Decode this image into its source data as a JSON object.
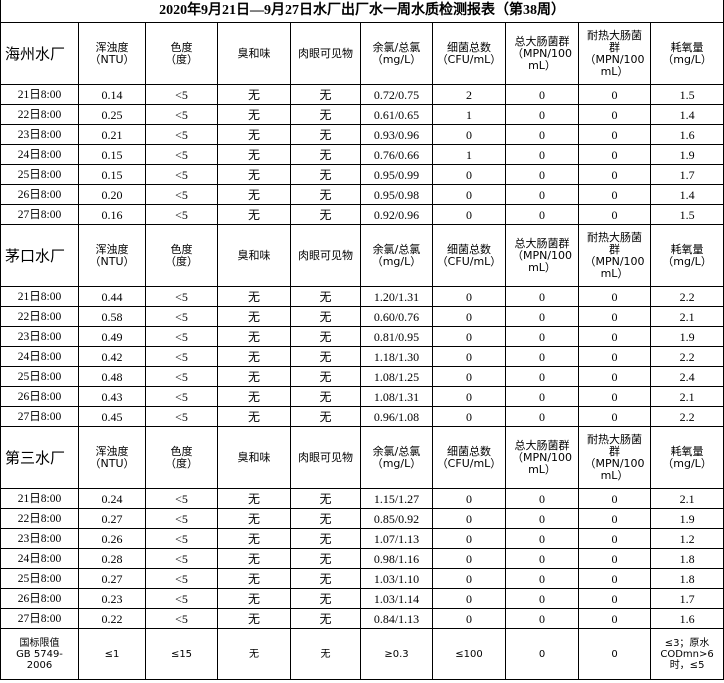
{
  "title": "2020年9月21日—9月27日水厂出厂水一周水质检测报表（第38周）",
  "sections": [
    {
      "name": "海州水厂",
      "headers": [
        "浑浊度\n（NTU）",
        "色度\n（度）",
        "臭和味",
        "肉眼可见物",
        "余氯/总氯\n（mg/L）",
        "细菌总数\n（CFU/mL）",
        "总大肠菌群\n（MPN/100\nmL）",
        "耐热大肠菌\n群\n（MPN/100\nmL）",
        "耗氧量\n（mg/L）"
      ],
      "rows": [
        [
          "21日8:00",
          "0.14",
          "<5",
          "无",
          "无",
          "0.72/0.75",
          "2",
          "0",
          "0",
          "1.5"
        ],
        [
          "22日8:00",
          "0.25",
          "<5",
          "无",
          "无",
          "0.61/0.65",
          "1",
          "0",
          "0",
          "1.4"
        ],
        [
          "23日8:00",
          "0.21",
          "<5",
          "无",
          "无",
          "0.93/0.96",
          "0",
          "0",
          "0",
          "1.6"
        ],
        [
          "24日8:00",
          "0.15",
          "<5",
          "无",
          "无",
          "0.76/0.66",
          "1",
          "0",
          "0",
          "1.9"
        ],
        [
          "25日8:00",
          "0.15",
          "<5",
          "无",
          "无",
          "0.95/0.99",
          "0",
          "0",
          "0",
          "1.7"
        ],
        [
          "26日8:00",
          "0.20",
          "<5",
          "无",
          "无",
          "0.95/0.98",
          "0",
          "0",
          "0",
          "1.4"
        ],
        [
          "27日8:00",
          "0.16",
          "<5",
          "无",
          "无",
          "0.92/0.96",
          "0",
          "0",
          "0",
          "1.5"
        ]
      ]
    },
    {
      "name": "茅口水厂",
      "headers": [
        "浑浊度\n（NTU）",
        "色度\n（度）",
        "臭和味",
        "肉眼可见物",
        "余氯/总氯\n（mg/L）",
        "细菌总数\n（CFU/mL）",
        "总大肠菌群\n（MPN/100\nmL）",
        "耐热大肠菌\n群\n（MPN/100\nmL）",
        "耗氧量\n（mg/L）"
      ],
      "rows": [
        [
          "21日8:00",
          "0.44",
          "<5",
          "无",
          "无",
          "1.20/1.31",
          "0",
          "0",
          "0",
          "2.2"
        ],
        [
          "22日8:00",
          "0.58",
          "<5",
          "无",
          "无",
          "0.60/0.76",
          "0",
          "0",
          "0",
          "2.1"
        ],
        [
          "23日8:00",
          "0.49",
          "<5",
          "无",
          "无",
          "0.81/0.95",
          "0",
          "0",
          "0",
          "1.9"
        ],
        [
          "24日8:00",
          "0.42",
          "<5",
          "无",
          "无",
          "1.18/1.30",
          "0",
          "0",
          "0",
          "2.2"
        ],
        [
          "25日8:00",
          "0.48",
          "<5",
          "无",
          "无",
          "1.08/1.25",
          "0",
          "0",
          "0",
          "2.4"
        ],
        [
          "26日8:00",
          "0.43",
          "<5",
          "无",
          "无",
          "1.08/1.31",
          "0",
          "0",
          "0",
          "2.1"
        ],
        [
          "27日8:00",
          "0.45",
          "<5",
          "无",
          "无",
          "0.96/1.08",
          "0",
          "0",
          "0",
          "2.2"
        ]
      ]
    },
    {
      "name": "第三水厂",
      "headers": [
        "浑浊度\n（NTU）",
        "色度\n（度）",
        "臭和味",
        "肉眼可见物",
        "余氯/总氯\n（mg/L）",
        "细菌总数\n（CFU/mL）",
        "总大肠菌群\n（MPN/100\nmL）",
        "耐热大肠菌\n群\n（MPN/100\nmL）",
        "耗氧量\n（mg/L）"
      ],
      "rows": [
        [
          "21日8:00",
          "0.24",
          "<5",
          "无",
          "无",
          "1.15/1.27",
          "0",
          "0",
          "0",
          "2.1"
        ],
        [
          "22日8:00",
          "0.27",
          "<5",
          "无",
          "无",
          "0.85/0.92",
          "0",
          "0",
          "0",
          "1.9"
        ],
        [
          "23日8:00",
          "0.26",
          "<5",
          "无",
          "无",
          "1.07/1.13",
          "0",
          "0",
          "0",
          "1.2"
        ],
        [
          "24日8:00",
          "0.28",
          "<5",
          "无",
          "无",
          "0.98/1.16",
          "0",
          "0",
          "0",
          "1.8"
        ],
        [
          "25日8:00",
          "0.27",
          "<5",
          "无",
          "无",
          "1.03/1.10",
          "0",
          "0",
          "0",
          "1.8"
        ],
        [
          "26日8:00",
          "0.23",
          "<5",
          "无",
          "无",
          "1.03/1.14",
          "0",
          "0",
          "0",
          "1.7"
        ],
        [
          "27日8:00",
          "0.22",
          "<5",
          "无",
          "无",
          "0.84/1.13",
          "0",
          "0",
          "0",
          "1.6"
        ]
      ]
    }
  ],
  "footer": [
    "国标限值\nGB 5749-\n2006",
    "≤1",
    "≤15",
    "无",
    "无",
    "≥0.3",
    "≤100",
    "0",
    "0",
    "≤3；原水\nCODmn>6\n时，≤5"
  ]
}
